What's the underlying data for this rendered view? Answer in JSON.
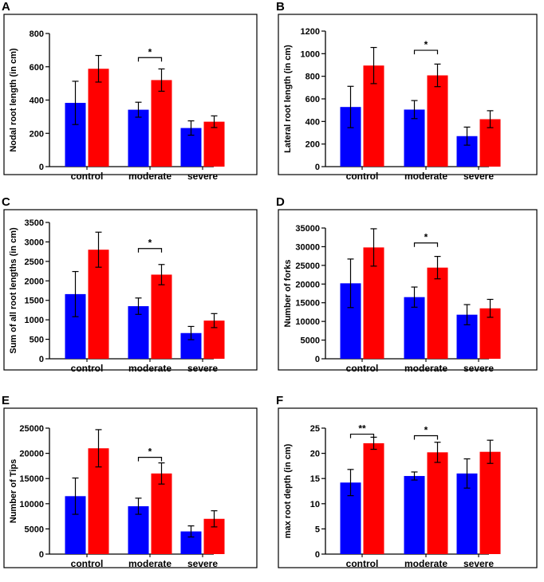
{
  "colors": {
    "control_series": "#0000ff",
    "treatment_series": "#ff0000",
    "frame": "#000000"
  },
  "chart_data": [
    {
      "panel": "A",
      "type": "bar",
      "ylabel": "Nodal root length (in cm)",
      "categories": [
        "control",
        "moderate",
        "severe"
      ],
      "ylim": [
        0,
        800
      ],
      "yticks": [
        0,
        200,
        400,
        600,
        800
      ],
      "series": [
        {
          "name": "blue",
          "values": [
            383,
            342,
            232
          ],
          "errors": [
            130,
            45,
            43
          ]
        },
        {
          "name": "red",
          "values": [
            588,
            520,
            270
          ],
          "errors": [
            80,
            67,
            35
          ]
        }
      ],
      "significance": [
        {
          "category": "moderate",
          "label": "*",
          "y": 655
        }
      ]
    },
    {
      "panel": "B",
      "type": "bar",
      "ylabel": "Lateral root length (in cm)",
      "categories": [
        "control",
        "moderate",
        "severe"
      ],
      "ylim": [
        0,
        1200
      ],
      "yticks": [
        0,
        200,
        400,
        600,
        800,
        1000,
        1200
      ],
      "series": [
        {
          "name": "blue",
          "values": [
            528,
            505,
            270
          ],
          "errors": [
            183,
            80,
            80
          ]
        },
        {
          "name": "red",
          "values": [
            895,
            808,
            420
          ],
          "errors": [
            160,
            100,
            75
          ]
        }
      ],
      "significance": [
        {
          "category": "moderate",
          "label": "*",
          "y": 1030
        }
      ]
    },
    {
      "panel": "C",
      "type": "bar",
      "ylabel": "Sum of all root lengths (in cm)",
      "categories": [
        "control",
        "moderate",
        "severe"
      ],
      "ylim": [
        0,
        3500
      ],
      "yticks": [
        0,
        500,
        1000,
        1500,
        2000,
        2500,
        3000,
        3500
      ],
      "series": [
        {
          "name": "blue",
          "values": [
            1660,
            1350,
            660
          ],
          "errors": [
            580,
            210,
            170
          ]
        },
        {
          "name": "red",
          "values": [
            2800,
            2160,
            980
          ],
          "errors": [
            450,
            260,
            180
          ]
        }
      ],
      "significance": [
        {
          "category": "moderate",
          "label": "*",
          "y": 2830
        }
      ]
    },
    {
      "panel": "D",
      "type": "bar",
      "ylabel": "Number of forks",
      "categories": [
        "control",
        "moderate",
        "severe"
      ],
      "ylim": [
        0,
        35000
      ],
      "yticks": [
        0,
        5000,
        10000,
        15000,
        20000,
        25000,
        30000,
        35000
      ],
      "series": [
        {
          "name": "blue",
          "values": [
            20200,
            16500,
            11800
          ],
          "errors": [
            6500,
            2700,
            2700
          ]
        },
        {
          "name": "red",
          "values": [
            29800,
            24400,
            13500
          ],
          "errors": [
            5000,
            3000,
            2400
          ]
        }
      ],
      "significance": [
        {
          "category": "moderate",
          "label": "*",
          "y": 31000
        }
      ]
    },
    {
      "panel": "E",
      "type": "bar",
      "ylabel": "Number of Tips",
      "categories": [
        "control",
        "moderate",
        "severe"
      ],
      "ylim": [
        0,
        25000
      ],
      "yticks": [
        0,
        5000,
        10000,
        15000,
        20000,
        25000
      ],
      "series": [
        {
          "name": "blue",
          "values": [
            11500,
            9500,
            4500
          ],
          "errors": [
            3600,
            1600,
            1100
          ]
        },
        {
          "name": "red",
          "values": [
            21000,
            16000,
            7000
          ],
          "errors": [
            3700,
            2100,
            1600
          ]
        }
      ],
      "significance": [
        {
          "category": "moderate",
          "label": "*",
          "y": 19200
        }
      ]
    },
    {
      "panel": "F",
      "type": "bar",
      "ylabel": "max root depth (in cm)",
      "categories": [
        "control",
        "moderate",
        "severe"
      ],
      "ylim": [
        0,
        25
      ],
      "yticks": [
        0,
        5,
        10,
        15,
        20,
        25
      ],
      "series": [
        {
          "name": "blue",
          "values": [
            14.2,
            15.5,
            16.0
          ],
          "errors": [
            2.6,
            0.8,
            2.9
          ]
        },
        {
          "name": "red",
          "values": [
            22.0,
            20.2,
            20.3
          ],
          "errors": [
            1.2,
            2.0,
            2.3
          ]
        }
      ],
      "significance": [
        {
          "category": "control",
          "label": "**",
          "y": 23.8
        },
        {
          "category": "moderate",
          "label": "*",
          "y": 23.5
        }
      ]
    }
  ]
}
